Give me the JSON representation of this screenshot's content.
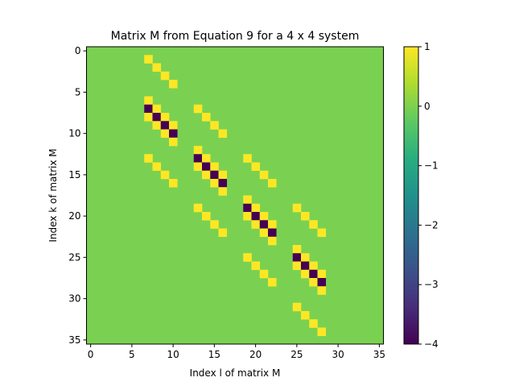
{
  "chart_data": {
    "type": "heatmap",
    "title": "Matrix M from Equation 9 for a 4 x 4 system",
    "xlabel": "Index l of matrix M",
    "ylabel": "Index k of matrix M",
    "rows": 36,
    "cols": 36,
    "background_value": 0,
    "cells": [
      {
        "k": 1,
        "l": 7,
        "v": 1
      },
      {
        "k": 2,
        "l": 8,
        "v": 1
      },
      {
        "k": 3,
        "l": 9,
        "v": 1
      },
      {
        "k": 4,
        "l": 10,
        "v": 1
      },
      {
        "k": 6,
        "l": 7,
        "v": 1
      },
      {
        "k": 7,
        "l": 7,
        "v": -4
      },
      {
        "k": 7,
        "l": 8,
        "v": 1
      },
      {
        "k": 7,
        "l": 13,
        "v": 1
      },
      {
        "k": 8,
        "l": 7,
        "v": 1
      },
      {
        "k": 8,
        "l": 8,
        "v": -4
      },
      {
        "k": 8,
        "l": 9,
        "v": 1
      },
      {
        "k": 8,
        "l": 14,
        "v": 1
      },
      {
        "k": 9,
        "l": 8,
        "v": 1
      },
      {
        "k": 9,
        "l": 9,
        "v": -4
      },
      {
        "k": 9,
        "l": 10,
        "v": 1
      },
      {
        "k": 9,
        "l": 15,
        "v": 1
      },
      {
        "k": 10,
        "l": 9,
        "v": 1
      },
      {
        "k": 10,
        "l": 10,
        "v": -4
      },
      {
        "k": 10,
        "l": 16,
        "v": 1
      },
      {
        "k": 11,
        "l": 10,
        "v": 1
      },
      {
        "k": 12,
        "l": 13,
        "v": 1
      },
      {
        "k": 13,
        "l": 7,
        "v": 1
      },
      {
        "k": 13,
        "l": 13,
        "v": -4
      },
      {
        "k": 13,
        "l": 14,
        "v": 1
      },
      {
        "k": 13,
        "l": 19,
        "v": 1
      },
      {
        "k": 14,
        "l": 8,
        "v": 1
      },
      {
        "k": 14,
        "l": 13,
        "v": 1
      },
      {
        "k": 14,
        "l": 14,
        "v": -4
      },
      {
        "k": 14,
        "l": 15,
        "v": 1
      },
      {
        "k": 14,
        "l": 20,
        "v": 1
      },
      {
        "k": 15,
        "l": 9,
        "v": 1
      },
      {
        "k": 15,
        "l": 14,
        "v": 1
      },
      {
        "k": 15,
        "l": 15,
        "v": -4
      },
      {
        "k": 15,
        "l": 16,
        "v": 1
      },
      {
        "k": 15,
        "l": 21,
        "v": 1
      },
      {
        "k": 16,
        "l": 10,
        "v": 1
      },
      {
        "k": 16,
        "l": 15,
        "v": 1
      },
      {
        "k": 16,
        "l": 16,
        "v": -4
      },
      {
        "k": 16,
        "l": 22,
        "v": 1
      },
      {
        "k": 17,
        "l": 16,
        "v": 1
      },
      {
        "k": 18,
        "l": 19,
        "v": 1
      },
      {
        "k": 19,
        "l": 13,
        "v": 1
      },
      {
        "k": 19,
        "l": 19,
        "v": -4
      },
      {
        "k": 19,
        "l": 20,
        "v": 1
      },
      {
        "k": 19,
        "l": 25,
        "v": 1
      },
      {
        "k": 20,
        "l": 14,
        "v": 1
      },
      {
        "k": 20,
        "l": 19,
        "v": 1
      },
      {
        "k": 20,
        "l": 20,
        "v": -4
      },
      {
        "k": 20,
        "l": 21,
        "v": 1
      },
      {
        "k": 20,
        "l": 26,
        "v": 1
      },
      {
        "k": 21,
        "l": 15,
        "v": 1
      },
      {
        "k": 21,
        "l": 20,
        "v": 1
      },
      {
        "k": 21,
        "l": 21,
        "v": -4
      },
      {
        "k": 21,
        "l": 22,
        "v": 1
      },
      {
        "k": 21,
        "l": 27,
        "v": 1
      },
      {
        "k": 22,
        "l": 16,
        "v": 1
      },
      {
        "k": 22,
        "l": 21,
        "v": 1
      },
      {
        "k": 22,
        "l": 22,
        "v": -4
      },
      {
        "k": 22,
        "l": 28,
        "v": 1
      },
      {
        "k": 23,
        "l": 22,
        "v": 1
      },
      {
        "k": 24,
        "l": 25,
        "v": 1
      },
      {
        "k": 25,
        "l": 19,
        "v": 1
      },
      {
        "k": 25,
        "l": 25,
        "v": -4
      },
      {
        "k": 25,
        "l": 26,
        "v": 1
      },
      {
        "k": 26,
        "l": 20,
        "v": 1
      },
      {
        "k": 26,
        "l": 25,
        "v": 1
      },
      {
        "k": 26,
        "l": 26,
        "v": -4
      },
      {
        "k": 26,
        "l": 27,
        "v": 1
      },
      {
        "k": 27,
        "l": 21,
        "v": 1
      },
      {
        "k": 27,
        "l": 26,
        "v": 1
      },
      {
        "k": 27,
        "l": 27,
        "v": -4
      },
      {
        "k": 27,
        "l": 28,
        "v": 1
      },
      {
        "k": 28,
        "l": 22,
        "v": 1
      },
      {
        "k": 28,
        "l": 27,
        "v": 1
      },
      {
        "k": 28,
        "l": 28,
        "v": -4
      },
      {
        "k": 29,
        "l": 28,
        "v": 1
      },
      {
        "k": 31,
        "l": 25,
        "v": 1
      },
      {
        "k": 32,
        "l": 26,
        "v": 1
      },
      {
        "k": 33,
        "l": 27,
        "v": 1
      },
      {
        "k": 34,
        "l": 28,
        "v": 1
      }
    ],
    "x_ticks": [
      "0",
      "5",
      "10",
      "15",
      "20",
      "25",
      "30",
      "35"
    ],
    "y_ticks": [
      "0",
      "5",
      "10",
      "15",
      "20",
      "25",
      "30",
      "35"
    ],
    "colorbar": {
      "colormap": "viridis",
      "vmin": -4,
      "vmax": 1,
      "ticks": [
        "1",
        "0",
        "−1",
        "−2",
        "−3",
        "−4"
      ]
    },
    "colors": {
      "background_cell": "#7ad151",
      "positive_cell": "#fde725",
      "negative_cell": "#440154"
    }
  }
}
